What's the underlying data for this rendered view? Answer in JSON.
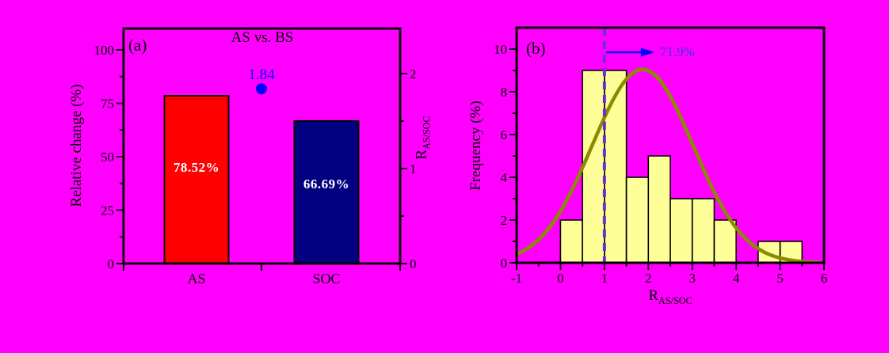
{
  "page": {
    "background_color": "#FF00FF"
  },
  "chart_data": [
    {
      "id": "panel_a",
      "type": "bar",
      "panel_label": "(a)",
      "title": "AS vs. BS",
      "categories": [
        "AS",
        "SOC"
      ],
      "values": [
        78.52,
        66.69
      ],
      "bar_value_labels": [
        "78.52%",
        "66.69%"
      ],
      "bar_colors": [
        "#FF0000",
        "#000080"
      ],
      "ylabel_left": "Relative change (%)",
      "yticks_left": [
        0,
        25,
        50,
        75,
        100
      ],
      "ylim_left": [
        0,
        110
      ],
      "ylabel_right": {
        "base": "R",
        "sub": "AS/SOC"
      },
      "yticks_right": [
        0,
        1,
        2
      ],
      "ylim_right": [
        0,
        2.475
      ],
      "ratio_point": {
        "value": 1.84,
        "label": "1.84",
        "color": "#0000FF"
      },
      "grid": false,
      "legend": "none"
    },
    {
      "id": "panel_b",
      "type": "histogram",
      "panel_label": "(b)",
      "xlabel": {
        "base": "R",
        "sub": "AS/SOC"
      },
      "ylabel": "Frequency (%)",
      "xticks": [
        -1,
        0,
        1,
        2,
        3,
        4,
        5,
        6
      ],
      "yticks": [
        0,
        2,
        4,
        6,
        8,
        10
      ],
      "xlim": [
        -1,
        6
      ],
      "ylim": [
        0,
        11
      ],
      "bin_width": 0.5,
      "bins": [
        {
          "start": 0.0,
          "count": 2
        },
        {
          "start": 0.5,
          "count": 9
        },
        {
          "start": 1.0,
          "count": 9
        },
        {
          "start": 1.5,
          "count": 4
        },
        {
          "start": 2.0,
          "count": 5
        },
        {
          "start": 2.5,
          "count": 3
        },
        {
          "start": 3.0,
          "count": 3
        },
        {
          "start": 3.5,
          "count": 2
        },
        {
          "start": 4.5,
          "count": 1
        },
        {
          "start": 5.0,
          "count": 1
        }
      ],
      "bar_color": "#FFFF99",
      "fit_curve": {
        "shape": "gaussian",
        "amplitude": 9.05,
        "mean": 1.87,
        "sigma": 1.15,
        "color": "#8B8B00"
      },
      "threshold_line": {
        "x": 1,
        "style": "dashed",
        "color": "#6B2FD5"
      },
      "annotation": {
        "text": "71.9%",
        "color": "#3333E6",
        "arrow_color": "#0000FF"
      },
      "grid": false,
      "legend": "none"
    }
  ]
}
